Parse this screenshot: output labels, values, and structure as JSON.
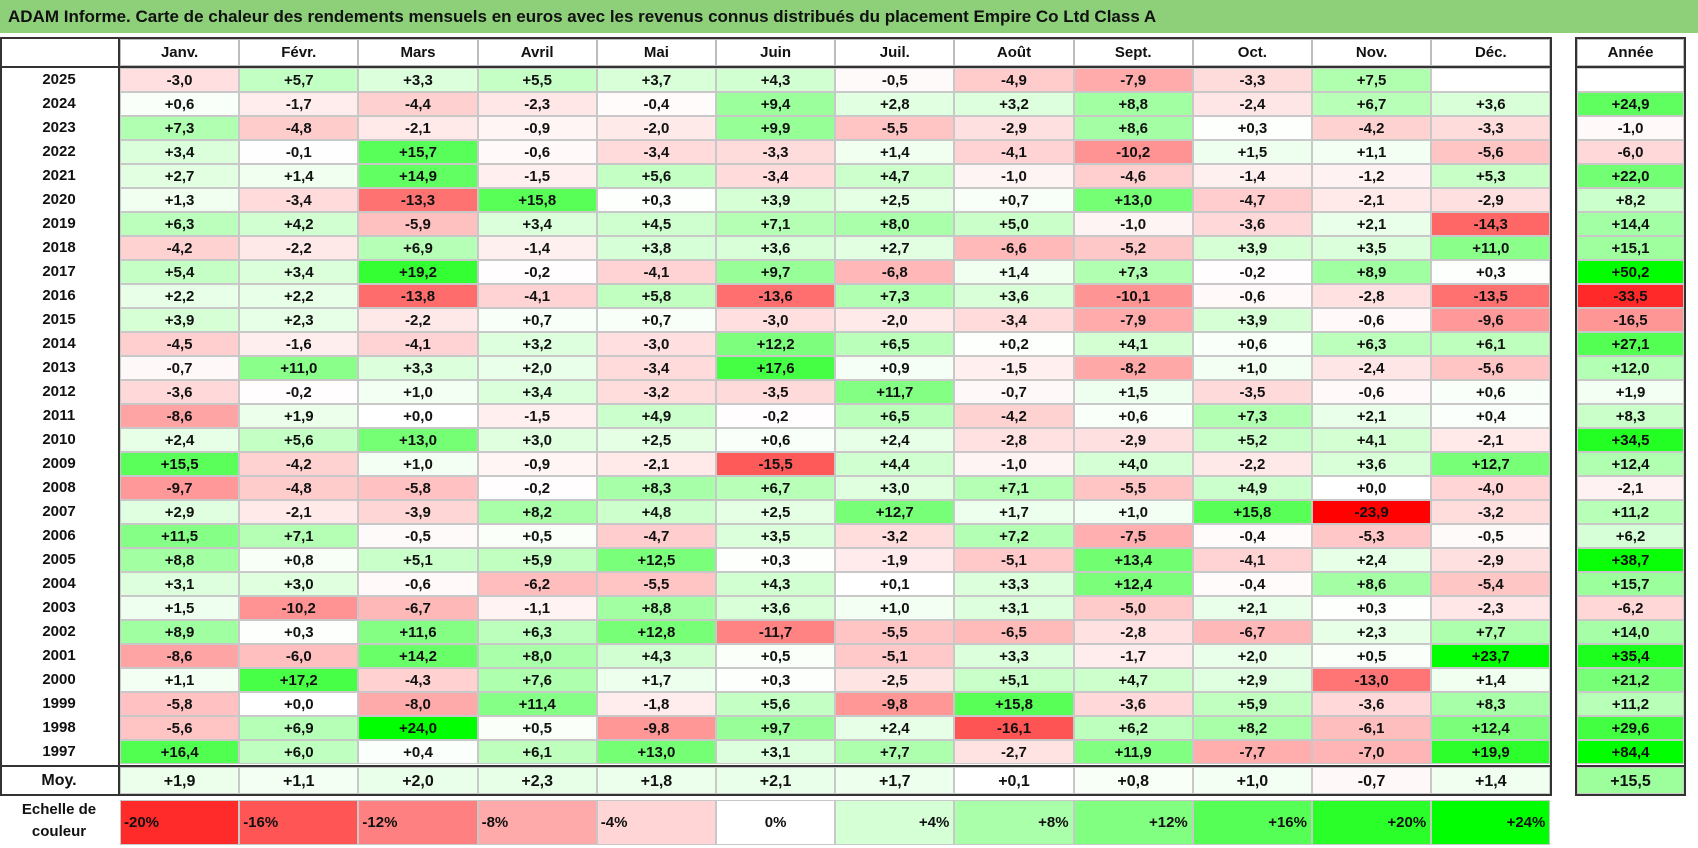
{
  "title": "ADAM Informe. Carte de chaleur des rendements mensuels en euros avec les revenus connus distribués du placement Empire Co Ltd Class A",
  "chart_data": {
    "type": "heatmap",
    "title": "ADAM Informe. Carte de chaleur des rendements mensuels en euros avec les revenus connus distribués du placement Empire Co Ltd Class A",
    "months": [
      "Janv.",
      "Févr.",
      "Mars",
      "Avril",
      "Mai",
      "Juin",
      "Juil.",
      "Août",
      "Sept.",
      "Oct.",
      "Nov.",
      "Déc."
    ],
    "year_header": "Année",
    "rows": [
      {
        "year": "2025",
        "values": [
          -3.0,
          5.7,
          3.3,
          5.5,
          3.7,
          4.3,
          -0.5,
          -4.9,
          -7.9,
          -3.3,
          7.5,
          null
        ],
        "annual": null
      },
      {
        "year": "2024",
        "values": [
          0.6,
          -1.7,
          -4.4,
          -2.3,
          -0.4,
          9.4,
          2.8,
          3.2,
          8.8,
          -2.4,
          6.7,
          3.6
        ],
        "annual": 24.9
      },
      {
        "year": "2023",
        "values": [
          7.3,
          -4.8,
          -2.1,
          -0.9,
          -2.0,
          9.9,
          -5.5,
          -2.9,
          8.6,
          0.3,
          -4.2,
          -3.3
        ],
        "annual": -1.0
      },
      {
        "year": "2022",
        "values": [
          3.4,
          -0.1,
          15.7,
          -0.6,
          -3.4,
          -3.3,
          1.4,
          -4.1,
          -10.2,
          1.5,
          1.1,
          -5.6
        ],
        "annual": -6.0
      },
      {
        "year": "2021",
        "values": [
          2.7,
          1.4,
          14.9,
          -1.5,
          5.6,
          -3.4,
          4.7,
          -1.0,
          -4.6,
          -1.4,
          -1.2,
          5.3
        ],
        "annual": 22.0
      },
      {
        "year": "2020",
        "values": [
          1.3,
          -3.4,
          -13.3,
          15.8,
          0.3,
          3.9,
          2.5,
          0.7,
          13.0,
          -4.7,
          -2.1,
          -2.9
        ],
        "annual": 8.2
      },
      {
        "year": "2019",
        "values": [
          6.3,
          4.2,
          -5.9,
          3.4,
          4.5,
          7.1,
          8.0,
          5.0,
          -1.0,
          -3.6,
          2.1,
          -14.3
        ],
        "annual": 14.4
      },
      {
        "year": "2018",
        "values": [
          -4.2,
          -2.2,
          6.9,
          -1.4,
          3.8,
          3.6,
          2.7,
          -6.6,
          -5.2,
          3.9,
          3.5,
          11.0
        ],
        "annual": 15.1
      },
      {
        "year": "2017",
        "values": [
          5.4,
          3.4,
          19.2,
          -0.2,
          -4.1,
          9.7,
          -6.8,
          1.4,
          7.3,
          -0.2,
          8.9,
          0.3
        ],
        "annual": 50.2
      },
      {
        "year": "2016",
        "values": [
          2.2,
          2.2,
          -13.8,
          -4.1,
          5.8,
          -13.6,
          7.3,
          3.6,
          -10.1,
          -0.6,
          -2.8,
          -13.5
        ],
        "annual": -33.5
      },
      {
        "year": "2015",
        "values": [
          3.9,
          2.3,
          -2.2,
          0.7,
          0.7,
          -3.0,
          -2.0,
          -3.4,
          -7.9,
          3.9,
          -0.6,
          -9.6
        ],
        "annual": -16.5
      },
      {
        "year": "2014",
        "values": [
          -4.5,
          -1.6,
          -4.1,
          3.2,
          -3.0,
          12.2,
          6.5,
          0.2,
          4.1,
          0.6,
          6.3,
          6.1
        ],
        "annual": 27.1
      },
      {
        "year": "2013",
        "values": [
          -0.7,
          11.0,
          3.3,
          2.0,
          -3.4,
          17.6,
          0.9,
          -1.5,
          -8.2,
          1.0,
          -2.4,
          -5.6
        ],
        "annual": 12.0
      },
      {
        "year": "2012",
        "values": [
          -3.6,
          -0.2,
          1.0,
          3.4,
          -3.2,
          -3.5,
          11.7,
          -0.7,
          1.5,
          -3.5,
          -0.6,
          0.6
        ],
        "annual": 1.9
      },
      {
        "year": "2011",
        "values": [
          -8.6,
          1.9,
          0.0,
          -1.5,
          4.9,
          -0.2,
          6.5,
          -4.2,
          0.6,
          7.3,
          2.1,
          0.4
        ],
        "annual": 8.3
      },
      {
        "year": "2010",
        "values": [
          2.4,
          5.6,
          13.0,
          3.0,
          2.5,
          0.6,
          2.4,
          -2.8,
          -2.9,
          5.2,
          4.1,
          -2.1
        ],
        "annual": 34.5
      },
      {
        "year": "2009",
        "values": [
          15.5,
          -4.2,
          1.0,
          -0.9,
          -2.1,
          -15.5,
          4.4,
          -1.0,
          4.0,
          -2.2,
          3.6,
          12.7
        ],
        "annual": 12.4
      },
      {
        "year": "2008",
        "values": [
          -9.7,
          -4.8,
          -5.8,
          -0.2,
          8.3,
          6.7,
          3.0,
          7.1,
          -5.5,
          4.9,
          0.0,
          -4.0
        ],
        "annual": -2.1
      },
      {
        "year": "2007",
        "values": [
          2.9,
          -2.1,
          -3.9,
          8.2,
          4.8,
          2.5,
          12.7,
          1.7,
          1.0,
          15.8,
          -23.9,
          -3.2
        ],
        "annual": 11.2
      },
      {
        "year": "2006",
        "values": [
          11.5,
          7.1,
          -0.5,
          0.5,
          -4.7,
          3.5,
          -3.2,
          7.2,
          -7.5,
          -0.4,
          -5.3,
          -0.5
        ],
        "annual": 6.2
      },
      {
        "year": "2005",
        "values": [
          8.8,
          0.8,
          5.1,
          5.9,
          12.5,
          0.3,
          -1.9,
          -5.1,
          13.4,
          -4.1,
          2.4,
          -2.9
        ],
        "annual": 38.7
      },
      {
        "year": "2004",
        "values": [
          3.1,
          3.0,
          -0.6,
          -6.2,
          -5.5,
          4.3,
          0.1,
          3.3,
          12.4,
          -0.4,
          8.6,
          -5.4
        ],
        "annual": 15.7
      },
      {
        "year": "2003",
        "values": [
          1.5,
          -10.2,
          -6.7,
          -1.1,
          8.8,
          3.6,
          1.0,
          3.1,
          -5.0,
          2.1,
          0.3,
          -2.3
        ],
        "annual": -6.2
      },
      {
        "year": "2002",
        "values": [
          8.9,
          0.3,
          11.6,
          6.3,
          12.8,
          -11.7,
          -5.5,
          -6.5,
          -2.8,
          -6.7,
          2.3,
          7.7
        ],
        "annual": 14.0
      },
      {
        "year": "2001",
        "values": [
          -8.6,
          -6.0,
          14.2,
          8.0,
          4.3,
          0.5,
          -5.1,
          3.3,
          -1.7,
          2.0,
          0.5,
          23.7
        ],
        "annual": 35.4
      },
      {
        "year": "2000",
        "values": [
          1.1,
          17.2,
          -4.3,
          7.6,
          1.7,
          0.3,
          -2.5,
          5.1,
          4.7,
          2.9,
          -13.0,
          1.4
        ],
        "annual": 21.2
      },
      {
        "year": "1999",
        "values": [
          -5.8,
          0.0,
          -8.0,
          11.4,
          -1.8,
          5.6,
          -9.8,
          15.8,
          -3.6,
          5.9,
          -3.6,
          8.3
        ],
        "annual": 11.2
      },
      {
        "year": "1998",
        "values": [
          -5.6,
          6.9,
          24.0,
          0.5,
          -9.8,
          9.7,
          2.4,
          -16.1,
          6.2,
          8.2,
          -6.1,
          12.4
        ],
        "annual": 29.6
      },
      {
        "year": "1997",
        "values": [
          16.4,
          6.0,
          0.4,
          6.1,
          13.0,
          3.1,
          7.7,
          -2.7,
          11.9,
          -7.7,
          -7.0,
          19.9
        ],
        "annual": 84.4
      }
    ],
    "average": {
      "label": "Moy.",
      "values": [
        1.9,
        1.1,
        2.0,
        2.3,
        1.8,
        2.1,
        1.7,
        0.1,
        0.8,
        1.0,
        -0.7,
        1.4
      ],
      "annual": 15.5
    },
    "scale": {
      "label_line1": "Echelle de",
      "label_line2": "couleur",
      "stops": [
        {
          "label": "-20%",
          "value": -20
        },
        {
          "label": "-16%",
          "value": -16
        },
        {
          "label": "-12%",
          "value": -12
        },
        {
          "label": "-8%",
          "value": -8
        },
        {
          "label": "-4%",
          "value": -4
        },
        {
          "label": "0%",
          "value": 0
        },
        {
          "label": "+4%",
          "value": 4
        },
        {
          "label": "+8%",
          "value": 8
        },
        {
          "label": "+12%",
          "value": 12
        },
        {
          "label": "+16%",
          "value": 16
        },
        {
          "label": "+20%",
          "value": 20
        },
        {
          "label": "+24%",
          "value": 24
        }
      ]
    },
    "colors": {
      "negative": "#ff0000",
      "neutral": "#ffffff",
      "positive": "#00ff00"
    }
  }
}
